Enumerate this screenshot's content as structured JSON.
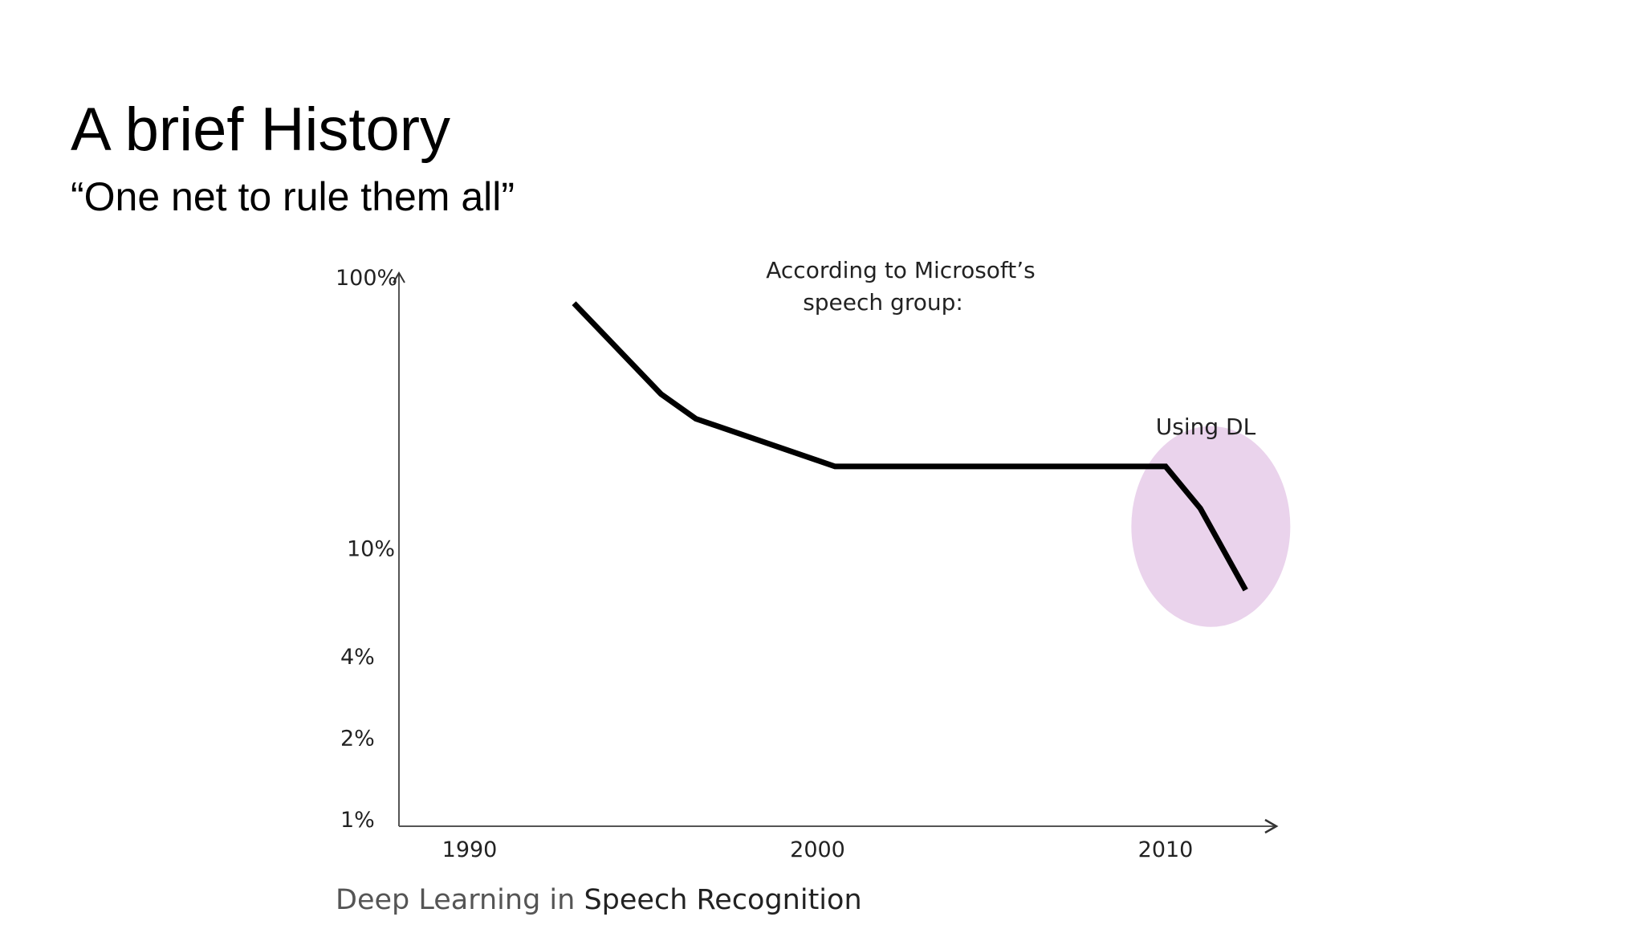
{
  "slide": {
    "title": "A brief History",
    "subtitle": "“One net to rule them all”"
  },
  "chart_data": {
    "type": "line",
    "title": "",
    "annotation_top": [
      "According to Microsoft’s",
      "speech group:"
    ],
    "annotation_highlight": "Using DL",
    "highlight_color": "#ead3ec",
    "line_color": "#000000",
    "x_axis": {
      "ticks": [
        1990,
        2000,
        2010
      ],
      "tick_labels": [
        "1990",
        "2000",
        "2010"
      ],
      "range": [
        1986,
        2014
      ]
    },
    "y_axis": {
      "ticks": [
        1,
        2,
        4,
        10,
        100
      ],
      "tick_labels": [
        "1%",
        "2%",
        "4%",
        "10%",
        "100%"
      ],
      "scale": "log",
      "range": [
        1,
        100
      ]
    },
    "series": [
      {
        "x": [
          1993,
          1995.5,
          1996.5,
          2000.5,
          2010,
          2011,
          2012.3
        ],
        "y": [
          80,
          37,
          30,
          20,
          20,
          14,
          7
        ]
      }
    ],
    "highlight_region": {
      "x_center": 2011.3,
      "y_center": 12,
      "x_span": 4.6,
      "note": "ellipse around Using DL segment"
    },
    "source_caption": {
      "prefix": "Deep Learning in ",
      "emphasis": "Speech Recognition"
    },
    "grid": false,
    "legend": "none"
  }
}
